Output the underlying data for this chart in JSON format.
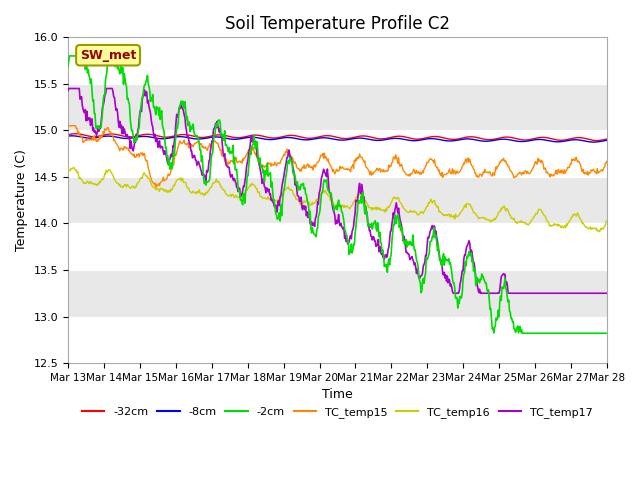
{
  "title": "Soil Temperature Profile C2",
  "xlabel": "Time",
  "ylabel": "Temperature (C)",
  "ylim": [
    12.5,
    16.0
  ],
  "yticks": [
    12.5,
    13.0,
    13.5,
    14.0,
    14.5,
    15.0,
    15.5,
    16.0
  ],
  "x_labels": [
    "Mar 13",
    "Mar 14",
    "Mar 15",
    "Mar 16",
    "Mar 17",
    "Mar 18",
    "Mar 19",
    "Mar 20",
    "Mar 21",
    "Mar 22",
    "Mar 23",
    "Mar 24",
    "Mar 25",
    "Mar 26",
    "Mar 27",
    "Mar 28"
  ],
  "colors": {
    "neg32cm": "#ff0000",
    "neg8cm": "#0000ff",
    "neg2cm": "#00dd00",
    "TC_temp15": "#ff8800",
    "TC_temp16": "#cccc00",
    "TC_temp17": "#aa00cc"
  },
  "legend_labels": [
    "-32cm",
    "-8cm",
    "-2cm",
    "TC_temp15",
    "TC_temp16",
    "TC_temp17"
  ],
  "annotation_text": "SW_met",
  "annotation_bg": "#ffff99",
  "annotation_edge": "#999900",
  "annotation_text_color": "#990000",
  "n_points": 720,
  "band_colors": [
    "#ffffff",
    "#e8e8e8"
  ],
  "band_edges": [
    12.5,
    13.0,
    13.5,
    14.0,
    14.5,
    15.0,
    15.5,
    16.0
  ]
}
